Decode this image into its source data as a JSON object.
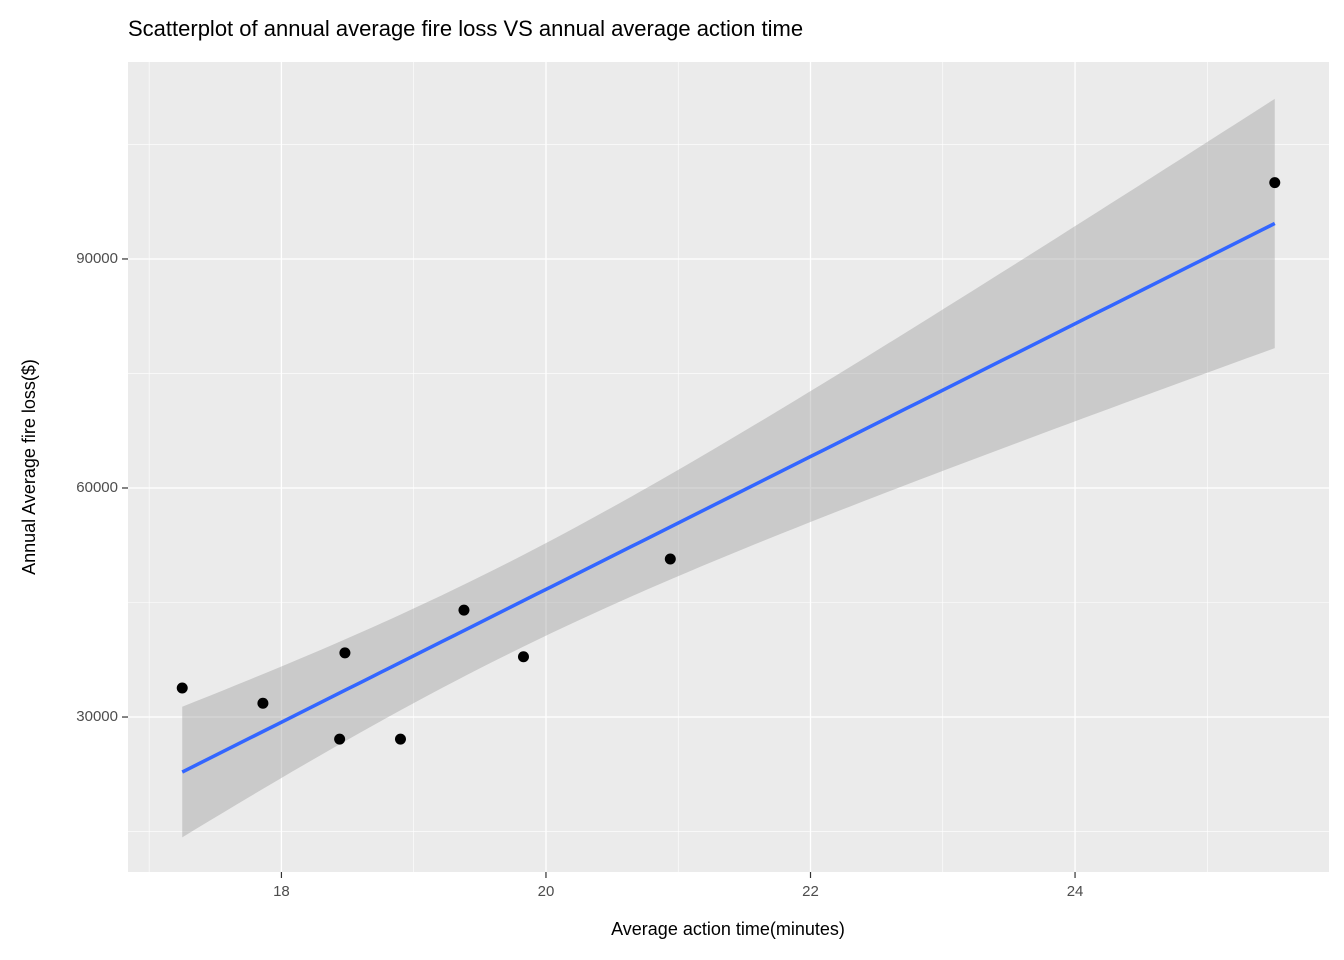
{
  "chart_data": {
    "type": "scatter",
    "title": "Scatterplot of annual average fire loss VS annual average action time",
    "x_label": "Average action time(minutes)",
    "y_label": "Annual Average fire loss($)",
    "x": [
      17.25,
      17.86,
      18.48,
      18.44,
      18.9,
      19.38,
      19.83,
      20.94,
      25.51
    ],
    "values": [
      33800,
      31800,
      38400,
      27100,
      27100,
      44000,
      37900,
      50700,
      100000
    ],
    "color": "#000000",
    "xlim": [
      16.84,
      25.92
    ],
    "xticks": [
      18,
      20,
      22,
      24
    ],
    "ylim": [
      9700,
      115800
    ],
    "yticks": [
      30000,
      60000,
      90000
    ],
    "grid": true,
    "smooth": "lm",
    "se": true,
    "smooth_color": "#3366ff",
    "band_color": "#999999"
  }
}
